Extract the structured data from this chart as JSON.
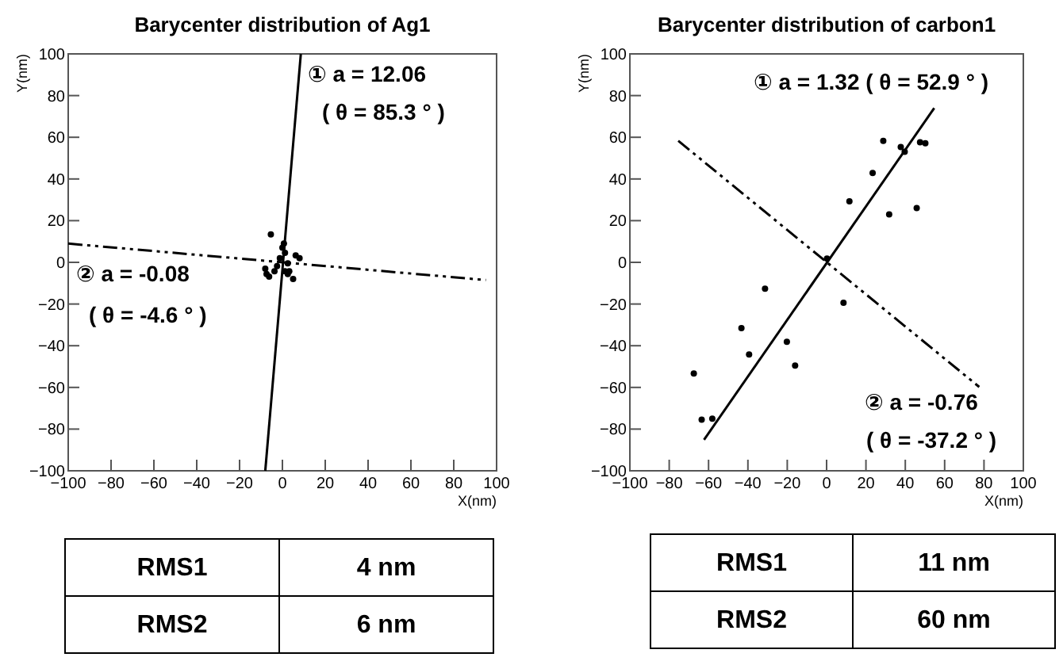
{
  "chart_data": [
    {
      "type": "scatter",
      "title": "Barycenter distribution of Ag1",
      "xlabel": "X(nm)",
      "ylabel": "Y(nm)",
      "xlim": [
        -100,
        100
      ],
      "ylim": [
        -100,
        100
      ],
      "xticks": [
        -100,
        -80,
        -60,
        -40,
        -20,
        0,
        20,
        40,
        60,
        80,
        100
      ],
      "yticks": [
        -100,
        -80,
        -60,
        -40,
        -20,
        0,
        20,
        40,
        60,
        80,
        100
      ],
      "grid": false,
      "series": [
        {
          "marker": "circle",
          "color": "#000000",
          "x": [
            -5.4,
            -7.4,
            -6.2,
            -3.7,
            -1.2,
            0,
            0.7,
            1.2,
            2.5,
            1.2,
            2.5,
            5,
            6.2,
            8,
            -8,
            -2.5,
            3.2
          ],
          "values": [
            13.4,
            -5.6,
            -6.8,
            -4.3,
            2,
            7,
            9,
            4.6,
            -0.5,
            -4.3,
            -5.6,
            -8,
            3.3,
            2,
            -3,
            -1.8,
            -4.3
          ]
        },
        {
          "type": "line",
          "marker": "none",
          "color": "#000000",
          "line_style": "solid",
          "x": [
            -8,
            8.6
          ],
          "values": [
            -100,
            100
          ]
        },
        {
          "type": "line",
          "marker": "none",
          "color": "#000000",
          "line_style": "dashed",
          "x": [
            -100,
            95
          ],
          "values": [
            9,
            -8.5
          ]
        }
      ],
      "annotations": [
        "① a = 12.06",
        "( θ = 85.3 ° )",
        "② a = -0.08",
        "( θ = -4.6 ° )",
        "RMS1",
        "4 nm",
        "RMS2",
        "6 nm"
      ]
    },
    {
      "type": "scatter",
      "title": "Barycenter distribution of carbon1",
      "xlabel": "X(nm)",
      "ylabel": "Y(nm)",
      "xlim": [
        -100,
        100
      ],
      "ylim": [
        -100,
        100
      ],
      "xticks": [
        -100,
        -80,
        -60,
        -40,
        -20,
        0,
        20,
        40,
        60,
        80,
        100
      ],
      "yticks": [
        -100,
        -80,
        -60,
        -40,
        -20,
        0,
        20,
        40,
        60,
        80,
        100
      ],
      "grid": false,
      "series": [
        {
          "marker": "circle",
          "color": "#000000",
          "x": [
            -67.5,
            -63.5,
            -58.1,
            -43.3,
            -39.4,
            -31.3,
            -20.2,
            -16,
            0.2,
            8.6,
            11.6,
            23.4,
            28.8,
            31.8,
            37.7,
            39.7,
            45.8,
            47.5,
            50.2
          ],
          "values": [
            -53.3,
            -75.5,
            -75,
            -31.6,
            -44.2,
            -12.6,
            -38.1,
            -49.5,
            1.8,
            -19.4,
            29.3,
            42.9,
            58.3,
            23,
            55.3,
            53,
            26,
            57.6,
            57.1
          ]
        },
        {
          "type": "line",
          "marker": "none",
          "color": "#000000",
          "line_style": "solid",
          "x": [
            -62.3,
            54.7
          ],
          "values": [
            -85.1,
            74
          ]
        },
        {
          "type": "line",
          "marker": "none",
          "color": "#000000",
          "line_style": "dashed",
          "x": [
            -75.4,
            77.6
          ],
          "values": [
            58.3,
            -59.8
          ]
        }
      ],
      "annotations": [
        "① a = 1.32 ( θ = 52.9 ° )",
        "② a = -0.76",
        "( θ = -37.2 ° )",
        "RMS1",
        "11 nm",
        "RMS2",
        "60 nm"
      ]
    }
  ]
}
